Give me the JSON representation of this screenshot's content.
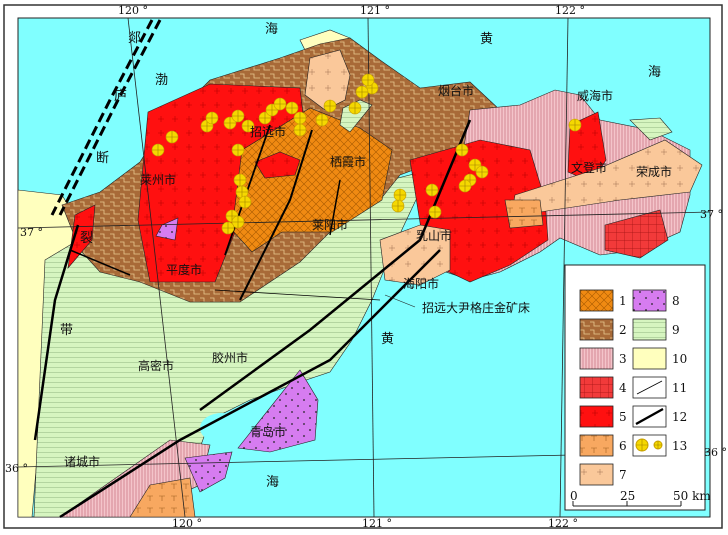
{
  "colors": {
    "sea": "#80FFFF",
    "unit1": "#F08A12",
    "unit2": "#A86A38",
    "unit3": "#F2B6BE",
    "unit4": "#F23A3A",
    "unit5": "#FF1010",
    "unit6": "#F8A860",
    "unit7": "#FAC89A",
    "unit8": "#D67CF0",
    "unit9": "#D6F5C0",
    "unit10": "#FFFFBE",
    "gold": "#F5D800"
  },
  "longitudes": {
    "top": [
      "120 °",
      "121 °",
      "122 °"
    ],
    "bottom": [
      "120 °",
      "121 °",
      "122 °"
    ]
  },
  "latitudes": {
    "left": [
      "37 °",
      "36 °"
    ],
    "right": [
      "37 °",
      "36 °"
    ]
  },
  "sea_labels": [
    "海",
    "黄",
    "海",
    "渤",
    "黄",
    "海"
  ],
  "fault_zone_labels": [
    "郯",
    "庐",
    "断",
    "裂",
    "带"
  ],
  "cities": [
    "烟台市",
    "威海市",
    "招远市",
    "栖霞市",
    "莱州市",
    "文登市",
    "荣成市",
    "莱阳市",
    "乳山市",
    "平度市",
    "海阳市",
    "高密市",
    "胶州市",
    "青岛市",
    "诸城市"
  ],
  "annotation": "招远大尹格庄金矿床",
  "legend": {
    "items": [
      "1",
      "2",
      "3",
      "4",
      "5",
      "6",
      "7",
      "8",
      "9",
      "10",
      "11",
      "12",
      "13"
    ],
    "icons": [
      "unit1-crosshatch",
      "unit2-zigzag",
      "unit3-vertical-lines",
      "unit4-grid",
      "unit5-crosses",
      "unit6-t-marks",
      "unit7-crosses",
      "unit8-dots",
      "unit9-horizontal-lines",
      "unit10-plain",
      "fault-thin-line",
      "fault-thick-line",
      "gold-deposit-circles"
    ]
  },
  "scale": {
    "ticks": [
      "0",
      "25",
      "50 km"
    ]
  }
}
